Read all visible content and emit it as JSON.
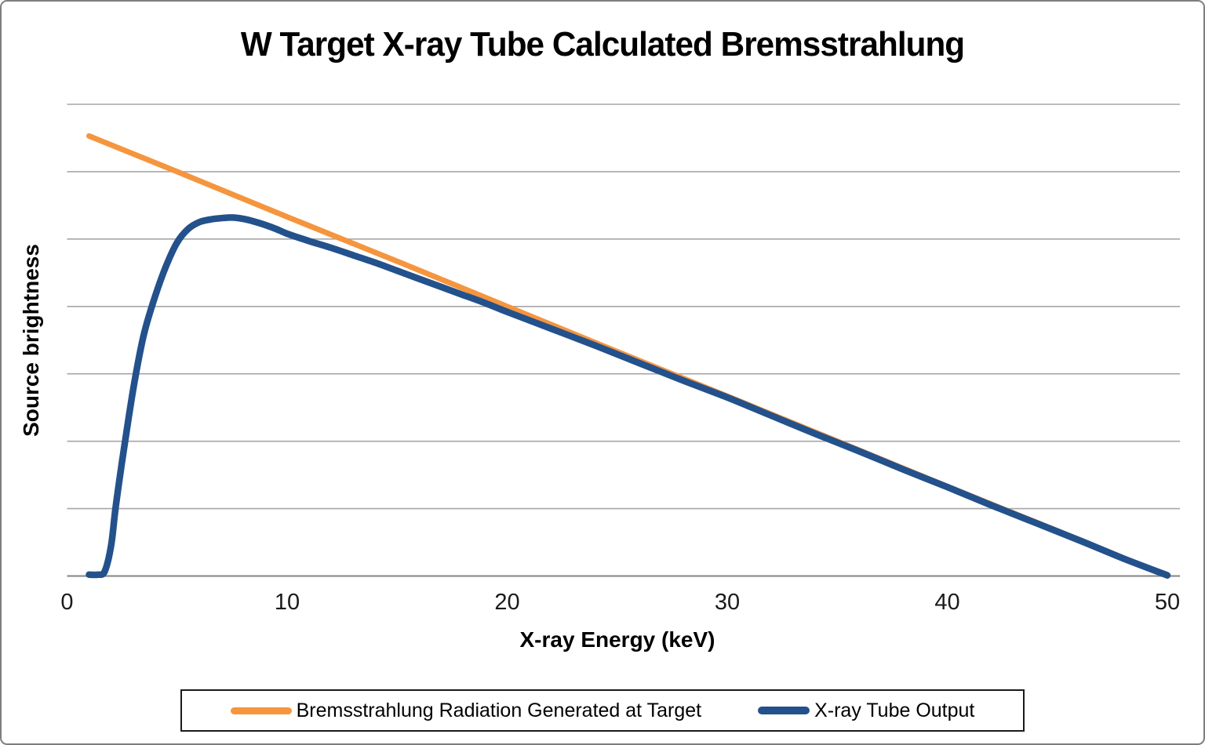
{
  "chart_data": {
    "type": "line",
    "title": "W Target X-ray Tube Calculated Bremsstrahlung",
    "xlabel": "X-ray Energy (keV)",
    "ylabel": "Source brightness",
    "xlim": [
      0,
      50
    ],
    "ylim": [
      0,
      7
    ],
    "x_ticks": [
      0,
      10,
      20,
      30,
      40,
      50
    ],
    "x_tick_labels": [
      "0",
      "10",
      "20",
      "30",
      "40",
      "50"
    ],
    "y_gridline_step": 1,
    "grid": "horizontal-only",
    "legend_position": "bottom-box",
    "series": [
      {
        "name": "Bremsstrahlung Radiation Generated at Target",
        "color": "#F5953E",
        "stroke_width": 7,
        "points": [
          [
            1,
            6.53
          ],
          [
            5,
            6.0
          ],
          [
            10,
            5.33
          ],
          [
            15,
            4.67
          ],
          [
            20,
            4.0
          ],
          [
            25,
            3.33
          ],
          [
            30,
            2.67
          ],
          [
            35,
            2.0
          ],
          [
            40,
            1.33
          ],
          [
            45,
            0.67
          ],
          [
            50,
            0
          ]
        ]
      },
      {
        "name": "X-ray Tube Output",
        "color": "#23518C",
        "stroke_width": 8.5,
        "points": [
          [
            1,
            0.02
          ],
          [
            1.4,
            0.02
          ],
          [
            1.7,
            0.06
          ],
          [
            2,
            0.45
          ],
          [
            2.2,
            1.0
          ],
          [
            2.5,
            1.7
          ],
          [
            2.8,
            2.35
          ],
          [
            3.1,
            2.95
          ],
          [
            3.5,
            3.6
          ],
          [
            4,
            4.15
          ],
          [
            4.5,
            4.6
          ],
          [
            5,
            4.95
          ],
          [
            5.5,
            5.15
          ],
          [
            6,
            5.25
          ],
          [
            6.5,
            5.29
          ],
          [
            7,
            5.31
          ],
          [
            7.5,
            5.32
          ],
          [
            8,
            5.3
          ],
          [
            8.5,
            5.26
          ],
          [
            9,
            5.21
          ],
          [
            9.5,
            5.15
          ],
          [
            10,
            5.08
          ],
          [
            11,
            4.97
          ],
          [
            12,
            4.87
          ],
          [
            13,
            4.76
          ],
          [
            14,
            4.65
          ],
          [
            15,
            4.53
          ],
          [
            16,
            4.41
          ],
          [
            17,
            4.29
          ],
          [
            18,
            4.17
          ],
          [
            19,
            4.05
          ],
          [
            20,
            3.92
          ],
          [
            22,
            3.67
          ],
          [
            24,
            3.42
          ],
          [
            26,
            3.16
          ],
          [
            28,
            2.9
          ],
          [
            30,
            2.65
          ],
          [
            32,
            2.38
          ],
          [
            34,
            2.11
          ],
          [
            36,
            1.85
          ],
          [
            38,
            1.58
          ],
          [
            40,
            1.32
          ],
          [
            42,
            1.05
          ],
          [
            44,
            0.79
          ],
          [
            46,
            0.53
          ],
          [
            48,
            0.26
          ],
          [
            50,
            0.01
          ]
        ]
      }
    ],
    "colors": {
      "background": "#FFFFFF",
      "gridline": "#A6A6A6",
      "axis_line": "#8F8F8F",
      "frame_border": "#7E7E7E",
      "legend_border": "#1A1A1A",
      "text": "#000000"
    }
  }
}
